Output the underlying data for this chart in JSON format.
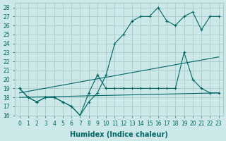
{
  "xlabel": "Humidex (Indice chaleur)",
  "bg_color": "#cce8e8",
  "grid_color": "#aacece",
  "line_color": "#006666",
  "xlim": [
    -0.5,
    23.5
  ],
  "ylim": [
    16,
    28.5
  ],
  "yticks": [
    16,
    17,
    18,
    19,
    20,
    21,
    22,
    23,
    24,
    25,
    26,
    27,
    28
  ],
  "xticks": [
    0,
    1,
    2,
    3,
    4,
    5,
    6,
    7,
    8,
    9,
    10,
    11,
    12,
    13,
    14,
    15,
    16,
    17,
    18,
    19,
    20,
    21,
    22,
    23
  ],
  "line1_x": [
    0,
    1,
    2,
    3,
    4,
    5,
    6,
    7,
    8,
    9,
    10,
    11,
    12,
    13,
    14,
    15,
    16,
    17,
    18,
    19,
    20,
    21,
    22,
    23
  ],
  "line1_y": [
    19,
    18,
    17.5,
    18,
    18,
    17.5,
    17,
    16,
    17.5,
    18.5,
    20.5,
    24,
    25,
    26.5,
    27,
    27,
    28,
    26.5,
    26,
    27,
    27.5,
    25.5,
    27,
    27
  ],
  "line2_x": [
    0,
    23
  ],
  "line2_y": [
    18.5,
    22.5
  ],
  "line3_x": [
    0,
    23
  ],
  "line3_y": [
    18,
    18.5
  ],
  "line4_x": [
    0,
    1,
    2,
    3,
    4,
    5,
    6,
    7,
    8,
    9,
    10,
    11,
    12,
    13,
    14,
    15,
    16,
    17,
    18,
    19,
    20,
    21,
    22,
    23
  ],
  "line4_y": [
    19,
    18,
    17.5,
    18,
    18,
    17.5,
    17,
    16,
    18.5,
    20.5,
    19,
    19,
    19,
    19,
    19,
    19,
    19,
    19,
    19,
    23,
    20,
    19,
    18.5,
    18.5
  ]
}
